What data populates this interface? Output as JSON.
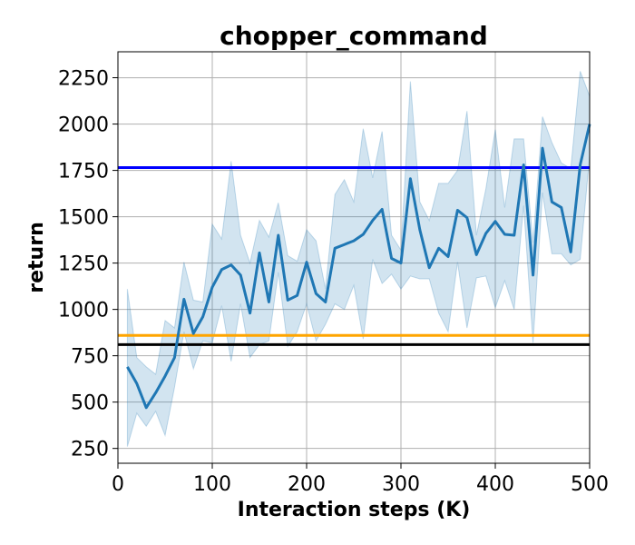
{
  "chart_data": {
    "type": "line",
    "title": "chopper_command",
    "xlabel": "Interaction steps (K)",
    "ylabel": "return",
    "xlim": [
      0,
      500
    ],
    "ylim": [
      170,
      2390
    ],
    "xticks": [
      0,
      100,
      200,
      300,
      400,
      500
    ],
    "yticks": [
      250,
      500,
      750,
      1000,
      1250,
      1500,
      1750,
      2000,
      2250
    ],
    "grid": true,
    "series": [
      {
        "color": "#1f77b4",
        "band_color": "#1f77b4",
        "x": [
          10,
          20,
          30,
          40,
          50,
          60,
          70,
          80,
          90,
          100,
          110,
          120,
          130,
          140,
          150,
          160,
          170,
          180,
          190,
          200,
          210,
          220,
          230,
          240,
          250,
          260,
          270,
          280,
          290,
          300,
          310,
          320,
          330,
          340,
          350,
          360,
          370,
          380,
          390,
          400,
          410,
          420,
          430,
          440,
          450,
          460,
          470,
          480,
          490,
          500
        ],
        "mean": [
          690,
          600,
          470,
          550,
          640,
          740,
          1055,
          870,
          960,
          1120,
          1215,
          1240,
          1185,
          980,
          1305,
          1040,
          1400,
          1050,
          1075,
          1255,
          1085,
          1040,
          1330,
          1350,
          1370,
          1405,
          1480,
          1540,
          1275,
          1250,
          1705,
          1430,
          1225,
          1330,
          1285,
          1535,
          1495,
          1295,
          1410,
          1475,
          1405,
          1400,
          1780,
          1185,
          1870,
          1580,
          1550,
          1310,
          1780,
          2000
        ],
        "upper": [
          1110,
          740,
          690,
          650,
          940,
          900,
          1255,
          1050,
          1040,
          1460,
          1380,
          1800,
          1400,
          1250,
          1480,
          1390,
          1575,
          1290,
          1260,
          1430,
          1370,
          1110,
          1620,
          1700,
          1580,
          1975,
          1710,
          1960,
          1400,
          1320,
          2230,
          1580,
          1480,
          1680,
          1680,
          1750,
          2070,
          1400,
          1650,
          1970,
          1550,
          1920,
          1920,
          1360,
          2040,
          1900,
          1790,
          1760,
          2285,
          2150
        ],
        "lower": [
          260,
          440,
          370,
          450,
          320,
          580,
          880,
          680,
          830,
          820,
          1020,
          720,
          1030,
          740,
          810,
          830,
          1200,
          800,
          880,
          1030,
          830,
          920,
          1030,
          1000,
          1130,
          840,
          1270,
          1140,
          1190,
          1110,
          1180,
          1165,
          1165,
          980,
          880,
          1255,
          900,
          1170,
          1180,
          1010,
          1155,
          1000,
          1560,
          820,
          1630,
          1300,
          1300,
          1240,
          1270,
          1830
        ]
      }
    ],
    "reference_lines": [
      {
        "y": 1765,
        "color": "#0000ff"
      },
      {
        "y": 860,
        "color": "#ffa500"
      },
      {
        "y": 810,
        "color": "#000000"
      }
    ]
  }
}
